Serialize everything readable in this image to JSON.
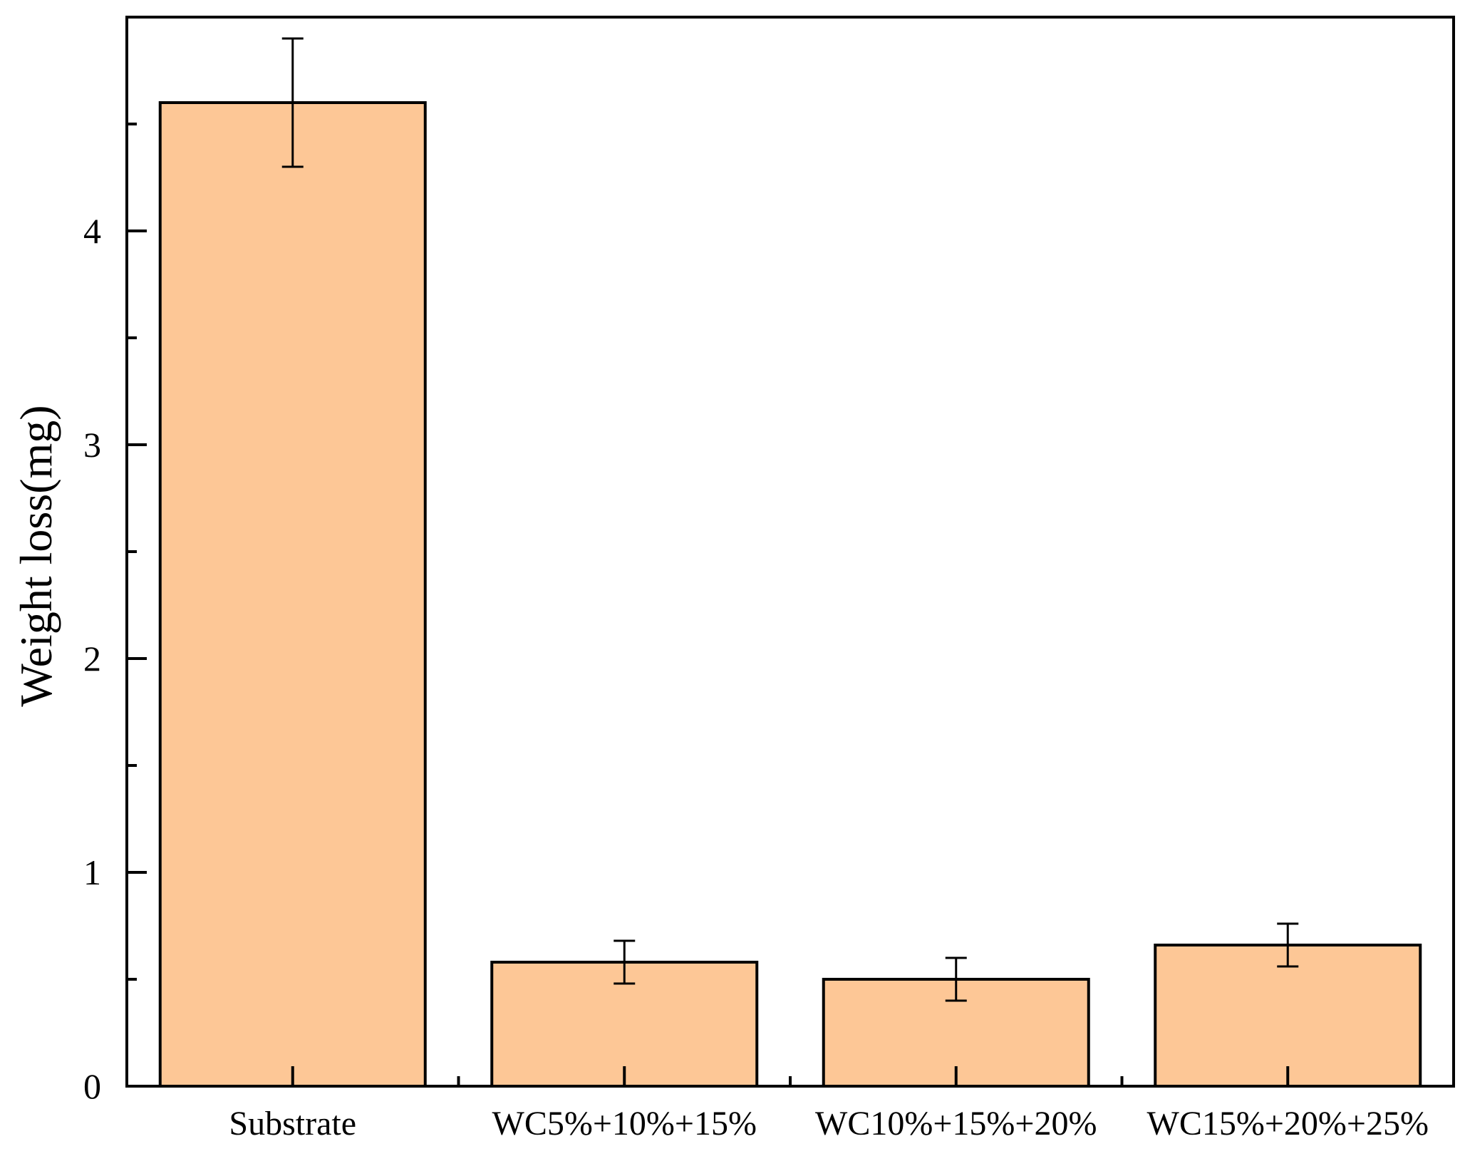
{
  "chart_data": {
    "type": "bar",
    "title": "",
    "xlabel": "",
    "ylabel": "Weight loss(mg)",
    "categories": [
      "Substrate",
      "WC5%+10%+15%",
      "WC10%+15%+20%",
      "WC15%+20%+25%"
    ],
    "values": [
      4.6,
      0.58,
      0.5,
      0.66
    ],
    "errors": [
      0.3,
      0.1,
      0.1,
      0.1
    ],
    "ylim": [
      0,
      4.9
    ],
    "yticks": [
      0,
      1,
      2,
      3,
      4
    ],
    "grid": false,
    "legend": "none",
    "colors": {
      "bar_fill": "#FDC796",
      "bar_edge": "#000000",
      "axis": "#000000",
      "background": "#FFFFFF"
    }
  }
}
